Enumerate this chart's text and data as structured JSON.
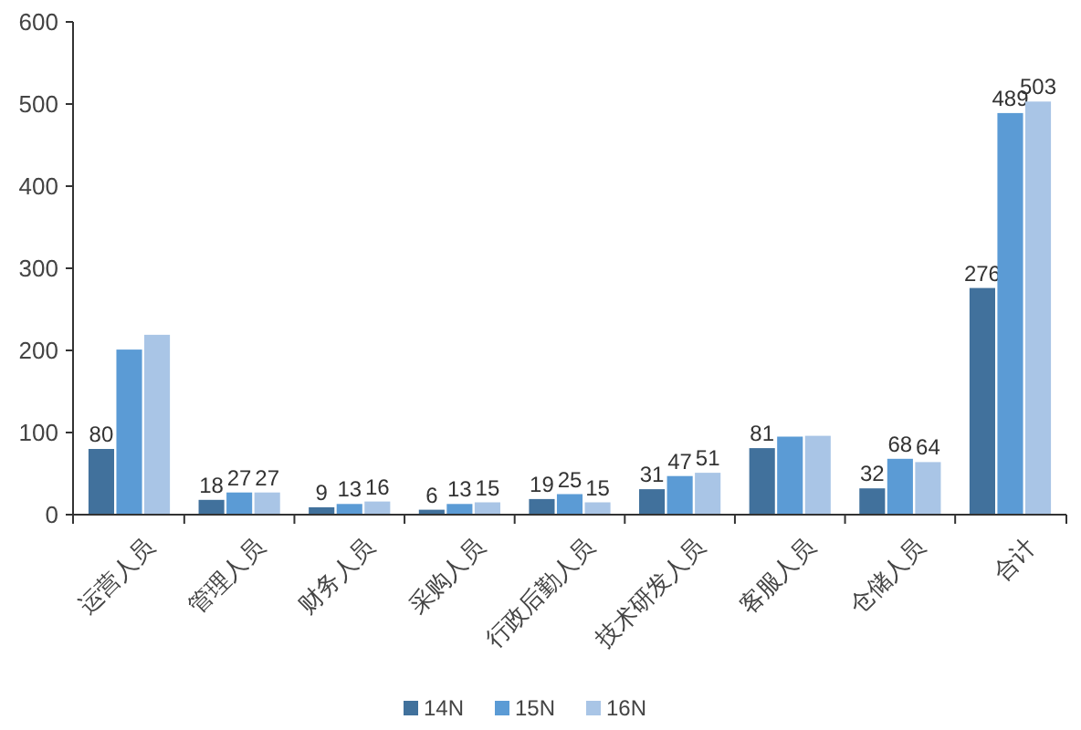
{
  "chart_data": {
    "type": "bar",
    "categories": [
      "运营人员",
      "管理人员",
      "财务人员",
      "采购人员",
      "行政后勤人员",
      "技术研发人员",
      "客服人员",
      "仓储人员",
      "合计"
    ],
    "series": [
      {
        "name": "14N",
        "color": "#41719c",
        "values": [
          80,
          18,
          9,
          6,
          19,
          31,
          81,
          32,
          276
        ],
        "value_labels": [
          "80",
          "18",
          "9",
          "6",
          "19",
          "31",
          "81",
          "32",
          "276"
        ]
      },
      {
        "name": "15N",
        "color": "#5b9bd5",
        "values": [
          201,
          27,
          13,
          13,
          25,
          47,
          95,
          68,
          489
        ],
        "value_labels": [
          null,
          "27",
          "13",
          "13",
          "25",
          "47",
          null,
          "68",
          "489"
        ]
      },
      {
        "name": "16N",
        "color": "#a9c5e6",
        "values": [
          219,
          27,
          16,
          15,
          15,
          51,
          96,
          64,
          503
        ],
        "value_labels": [
          null,
          "27",
          "16",
          "15",
          "15",
          "51",
          null,
          "64",
          "503"
        ]
      }
    ],
    "ylim": [
      0,
      600
    ],
    "yticks": [
      0,
      100,
      200,
      300,
      400,
      500,
      600
    ],
    "grid": false,
    "legend": "bottom"
  }
}
